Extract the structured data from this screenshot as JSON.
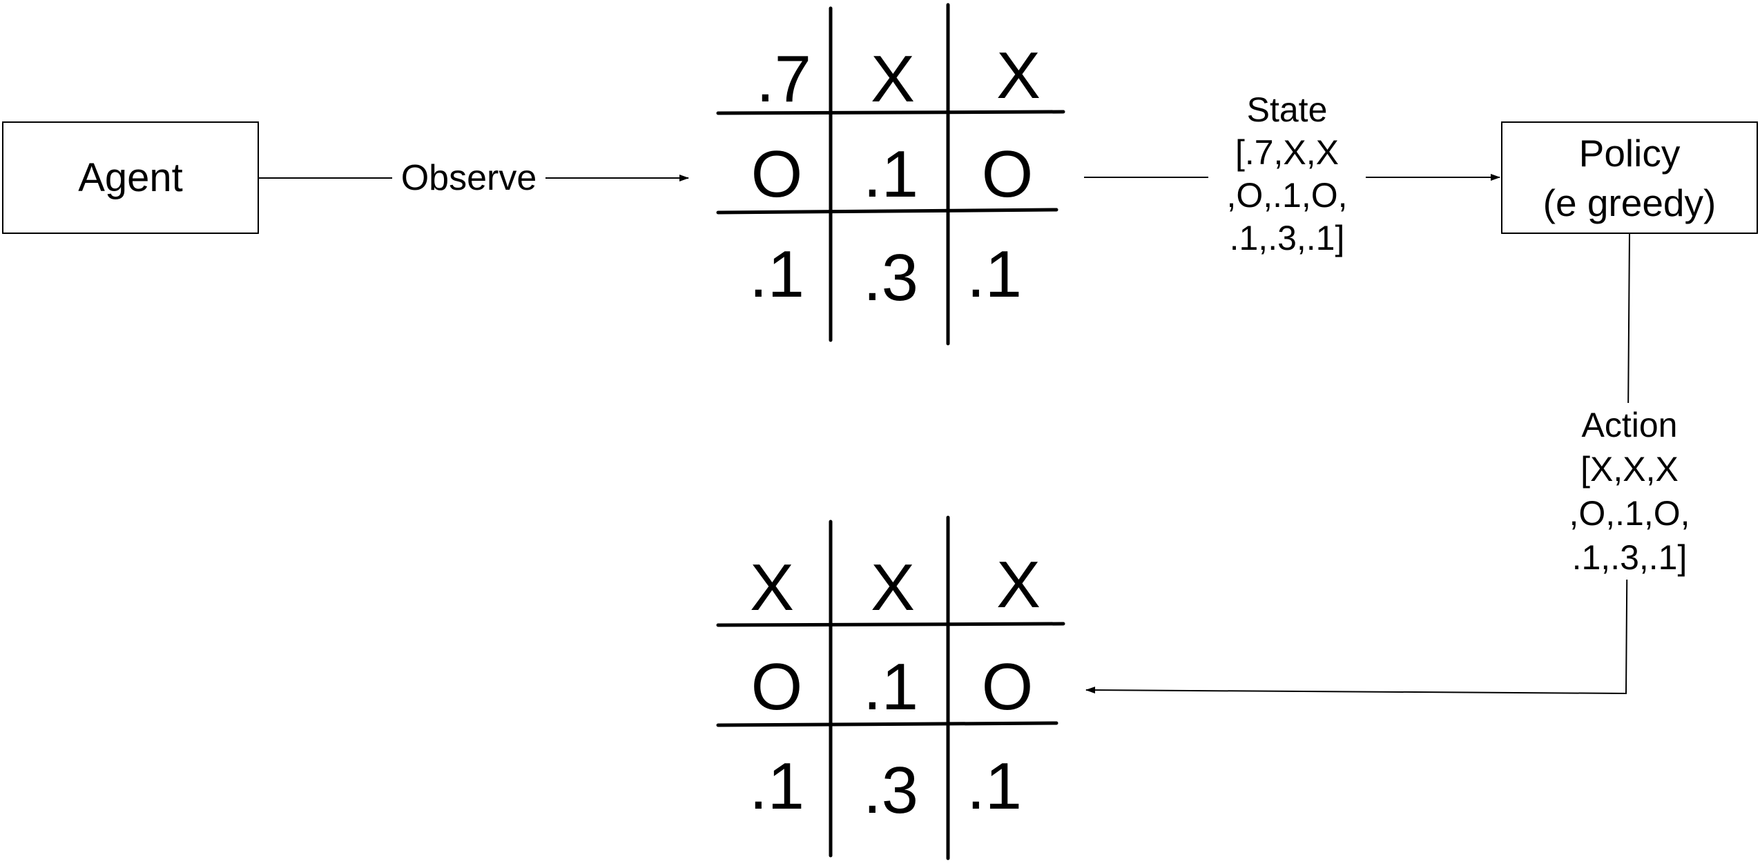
{
  "nodes": {
    "agent": "Agent",
    "policy": [
      "Policy",
      "(e greedy)"
    ]
  },
  "edges": {
    "observe": "Observe",
    "state": [
      "State",
      "[.7,X,X",
      ",O,.1,O,",
      ".1,.3,.1]"
    ],
    "action": [
      "Action",
      "[X,X,X",
      ",O,.1,O,",
      ".1,.3,.1]"
    ]
  },
  "boards": {
    "current": [
      ".7",
      "X",
      "X",
      "O",
      ".1",
      "O",
      ".1",
      ".3",
      ".1"
    ],
    "next": [
      "X",
      "X",
      "X",
      "O",
      ".1",
      "O",
      ".1",
      ".3",
      ".1"
    ]
  }
}
